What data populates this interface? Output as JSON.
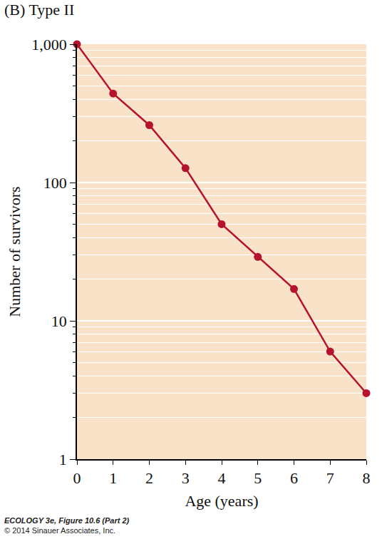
{
  "chart_data": {
    "type": "line",
    "title": "(B) Type II",
    "x_label": "Age (years)",
    "y_label": "Number of survivors",
    "x": [
      0,
      1,
      2,
      3,
      4,
      5,
      6,
      7,
      8
    ],
    "values": [
      1000,
      440,
      260,
      127,
      50,
      29,
      17,
      6,
      3
    ],
    "color": "#b5122e",
    "marker": "circle",
    "log": "y",
    "grid": true,
    "xlim": [
      0,
      8
    ],
    "xticks": [
      0,
      1,
      2,
      3,
      4,
      5,
      6,
      7,
      8
    ],
    "ylim": [
      1,
      1000
    ],
    "yticks": [
      1,
      10,
      100,
      {
        "value": 1000,
        "label": "1,000"
      }
    ],
    "caption": [
      "ECOLOGY 3e, Figure 10.6 (Part 2)",
      "© 2014 Sinauer Associates, Inc."
    ]
  }
}
